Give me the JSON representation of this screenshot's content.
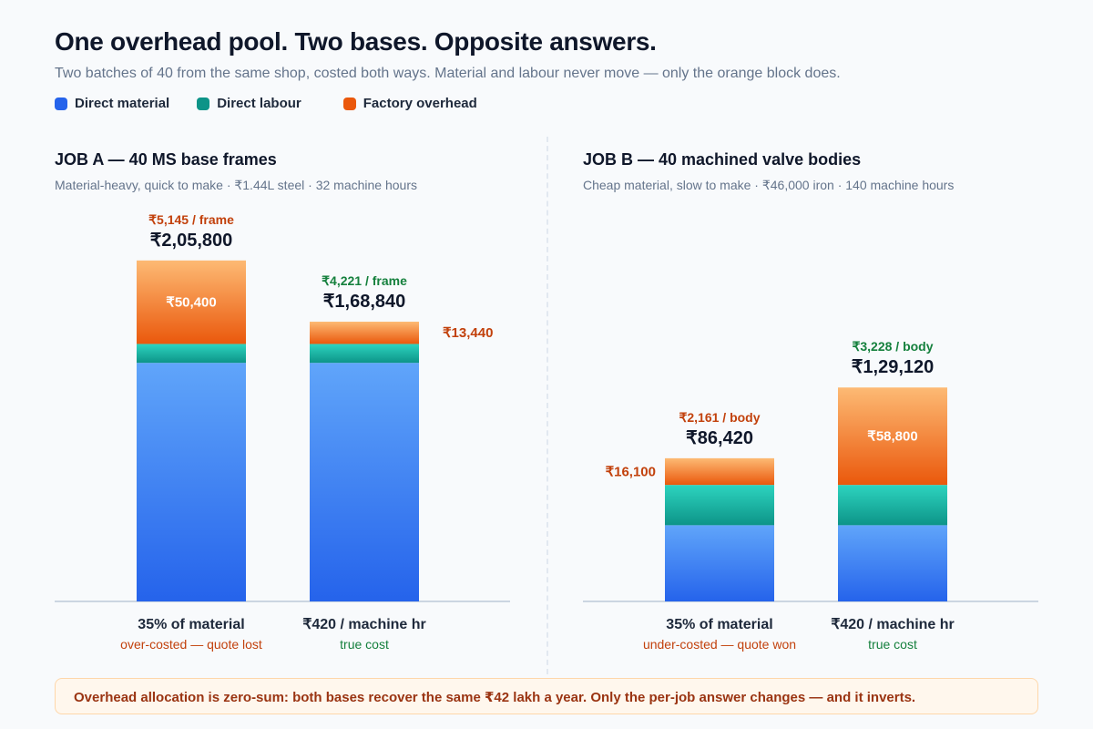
{
  "header": {
    "title": "One overhead pool. Two bases. Opposite answers.",
    "subtitle": "Two batches of 40 from the same shop, costed both ways. Material and labour never move — only the orange block does."
  },
  "legend": [
    {
      "label": "Direct material",
      "color": "#2563eb"
    },
    {
      "label": "Direct labour",
      "color": "#0d9488"
    },
    {
      "label": "Factory overhead",
      "color": "#ea580c"
    }
  ],
  "colors": {
    "material_top": "#60a5fa",
    "material_bottom": "#2563eb",
    "labour_top": "#2dd4bf",
    "labour_bottom": "#0d9488",
    "overhead_top": "#fdba74",
    "overhead_bottom": "#ea580c",
    "red_text": "#c2410c",
    "green_text": "#15803d",
    "axis": "#cbd5e1"
  },
  "panels": [
    {
      "title": "JOB A — 40 MS base frames",
      "subtitle": "Material-heavy, quick to make · ₹1.44L steel · 32 machine hours"
    },
    {
      "title": "JOB B — 40 machined valve bodies",
      "subtitle": "Cheap material, slow to make · ₹46,000 iron · 140 machine hours"
    }
  ],
  "callout": "Overhead allocation is zero-sum: both bases recover the same ₹42 lakh a year. Only the per-job answer changes — and it inverts.",
  "chart_data": [
    {
      "type": "bar",
      "stacked": true,
      "categories": [
        "35% of material",
        "₹420 / machine hr"
      ],
      "category_notes": [
        "over-costed — quote lost",
        "true cost"
      ],
      "series": [
        {
          "name": "Direct material",
          "values": [
            144000,
            144000
          ]
        },
        {
          "name": "Direct labour",
          "values": [
            11400,
            11400
          ]
        },
        {
          "name": "Factory overhead",
          "values": [
            50400,
            13440
          ],
          "labels": [
            "₹50,400",
            "₹13,440"
          ]
        }
      ],
      "totals": [
        "₹2,05,800",
        "₹1,68,840"
      ],
      "per_unit": [
        "₹5,145 / frame",
        "₹4,221 / frame"
      ],
      "ylim": [
        0,
        220000
      ]
    },
    {
      "type": "bar",
      "stacked": true,
      "categories": [
        "35% of material",
        "₹420 / machine hr"
      ],
      "category_notes": [
        "under-costed — quote won",
        "true cost"
      ],
      "series": [
        {
          "name": "Direct material",
          "values": [
            46000,
            46000
          ]
        },
        {
          "name": "Direct labour",
          "values": [
            24320,
            24320
          ]
        },
        {
          "name": "Factory overhead",
          "values": [
            16100,
            58800
          ],
          "labels": [
            "₹16,100",
            "₹58,800"
          ]
        }
      ],
      "totals": [
        "₹86,420",
        "₹1,29,120"
      ],
      "per_unit": [
        "₹2,161 / body",
        "₹3,228 / body"
      ],
      "ylim": [
        0,
        220000
      ]
    }
  ]
}
